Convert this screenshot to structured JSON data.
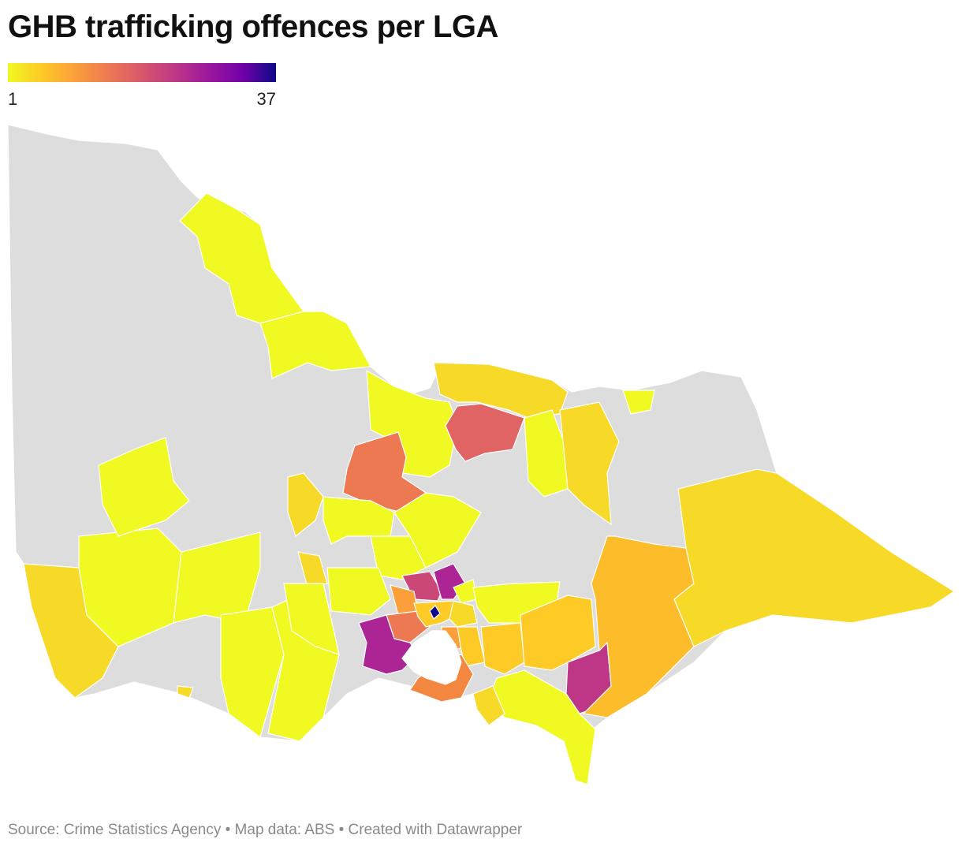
{
  "title": "GHB trafficking offences per LGA",
  "legend": {
    "min_label": "1",
    "max_label": "37",
    "stops": [
      "#f0f921",
      "#fdca26",
      "#fb9f3a",
      "#ed7953",
      "#d8576b",
      "#bd3786",
      "#9c179e",
      "#7201a8",
      "#0d0887"
    ]
  },
  "colors": {
    "no_data": "#dddddd",
    "water": "#ffffff",
    "border": "#ffffff"
  },
  "footer": {
    "source": "Source: Crime Statistics Agency",
    "map_data": "Map data: ABS",
    "credit": "Created with Datawrapper",
    "separator": " • "
  }
}
